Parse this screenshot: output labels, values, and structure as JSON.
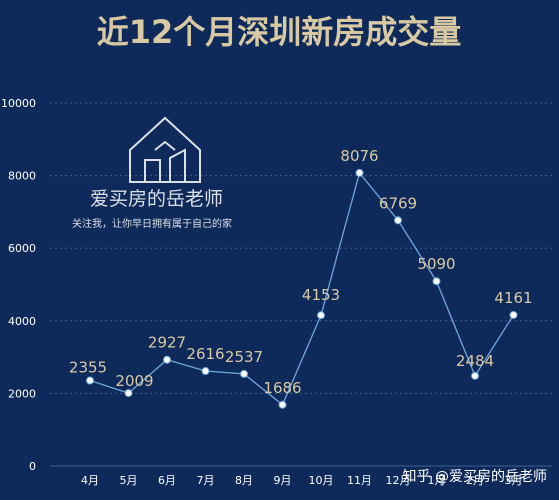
{
  "chart_data": {
    "type": "line",
    "title": "近12个月深圳新房成交量",
    "categories": [
      "4月",
      "5月",
      "6月",
      "7月",
      "8月",
      "9月",
      "10月",
      "11月",
      "12月",
      "1月",
      "2月",
      "3月"
    ],
    "series": [
      {
        "values": [
          2355,
          2009,
          2927,
          2616,
          2537,
          1686,
          4153,
          8076,
          6769,
          5090,
          2484,
          4161
        ]
      }
    ],
    "ylim": [
      0,
      10000
    ],
    "yticks": [
      0,
      2000,
      4000,
      6000,
      8000,
      10000
    ],
    "grid": true,
    "legend": "none",
    "colors": {
      "background": "#0e2a5a",
      "title": "#d9c9a3",
      "line": "#6fa8dc",
      "point": "#ffffff",
      "data_label": "#d9c9a3",
      "axis_text": "#ffffff",
      "grid": "#3f5f8f"
    }
  },
  "watermark": {
    "name": "爱买房的岳老师",
    "slogan": "关注我，让你早日拥有属于自己的家"
  },
  "footer": {
    "brand": "知乎 @爱买房的岳老师"
  }
}
